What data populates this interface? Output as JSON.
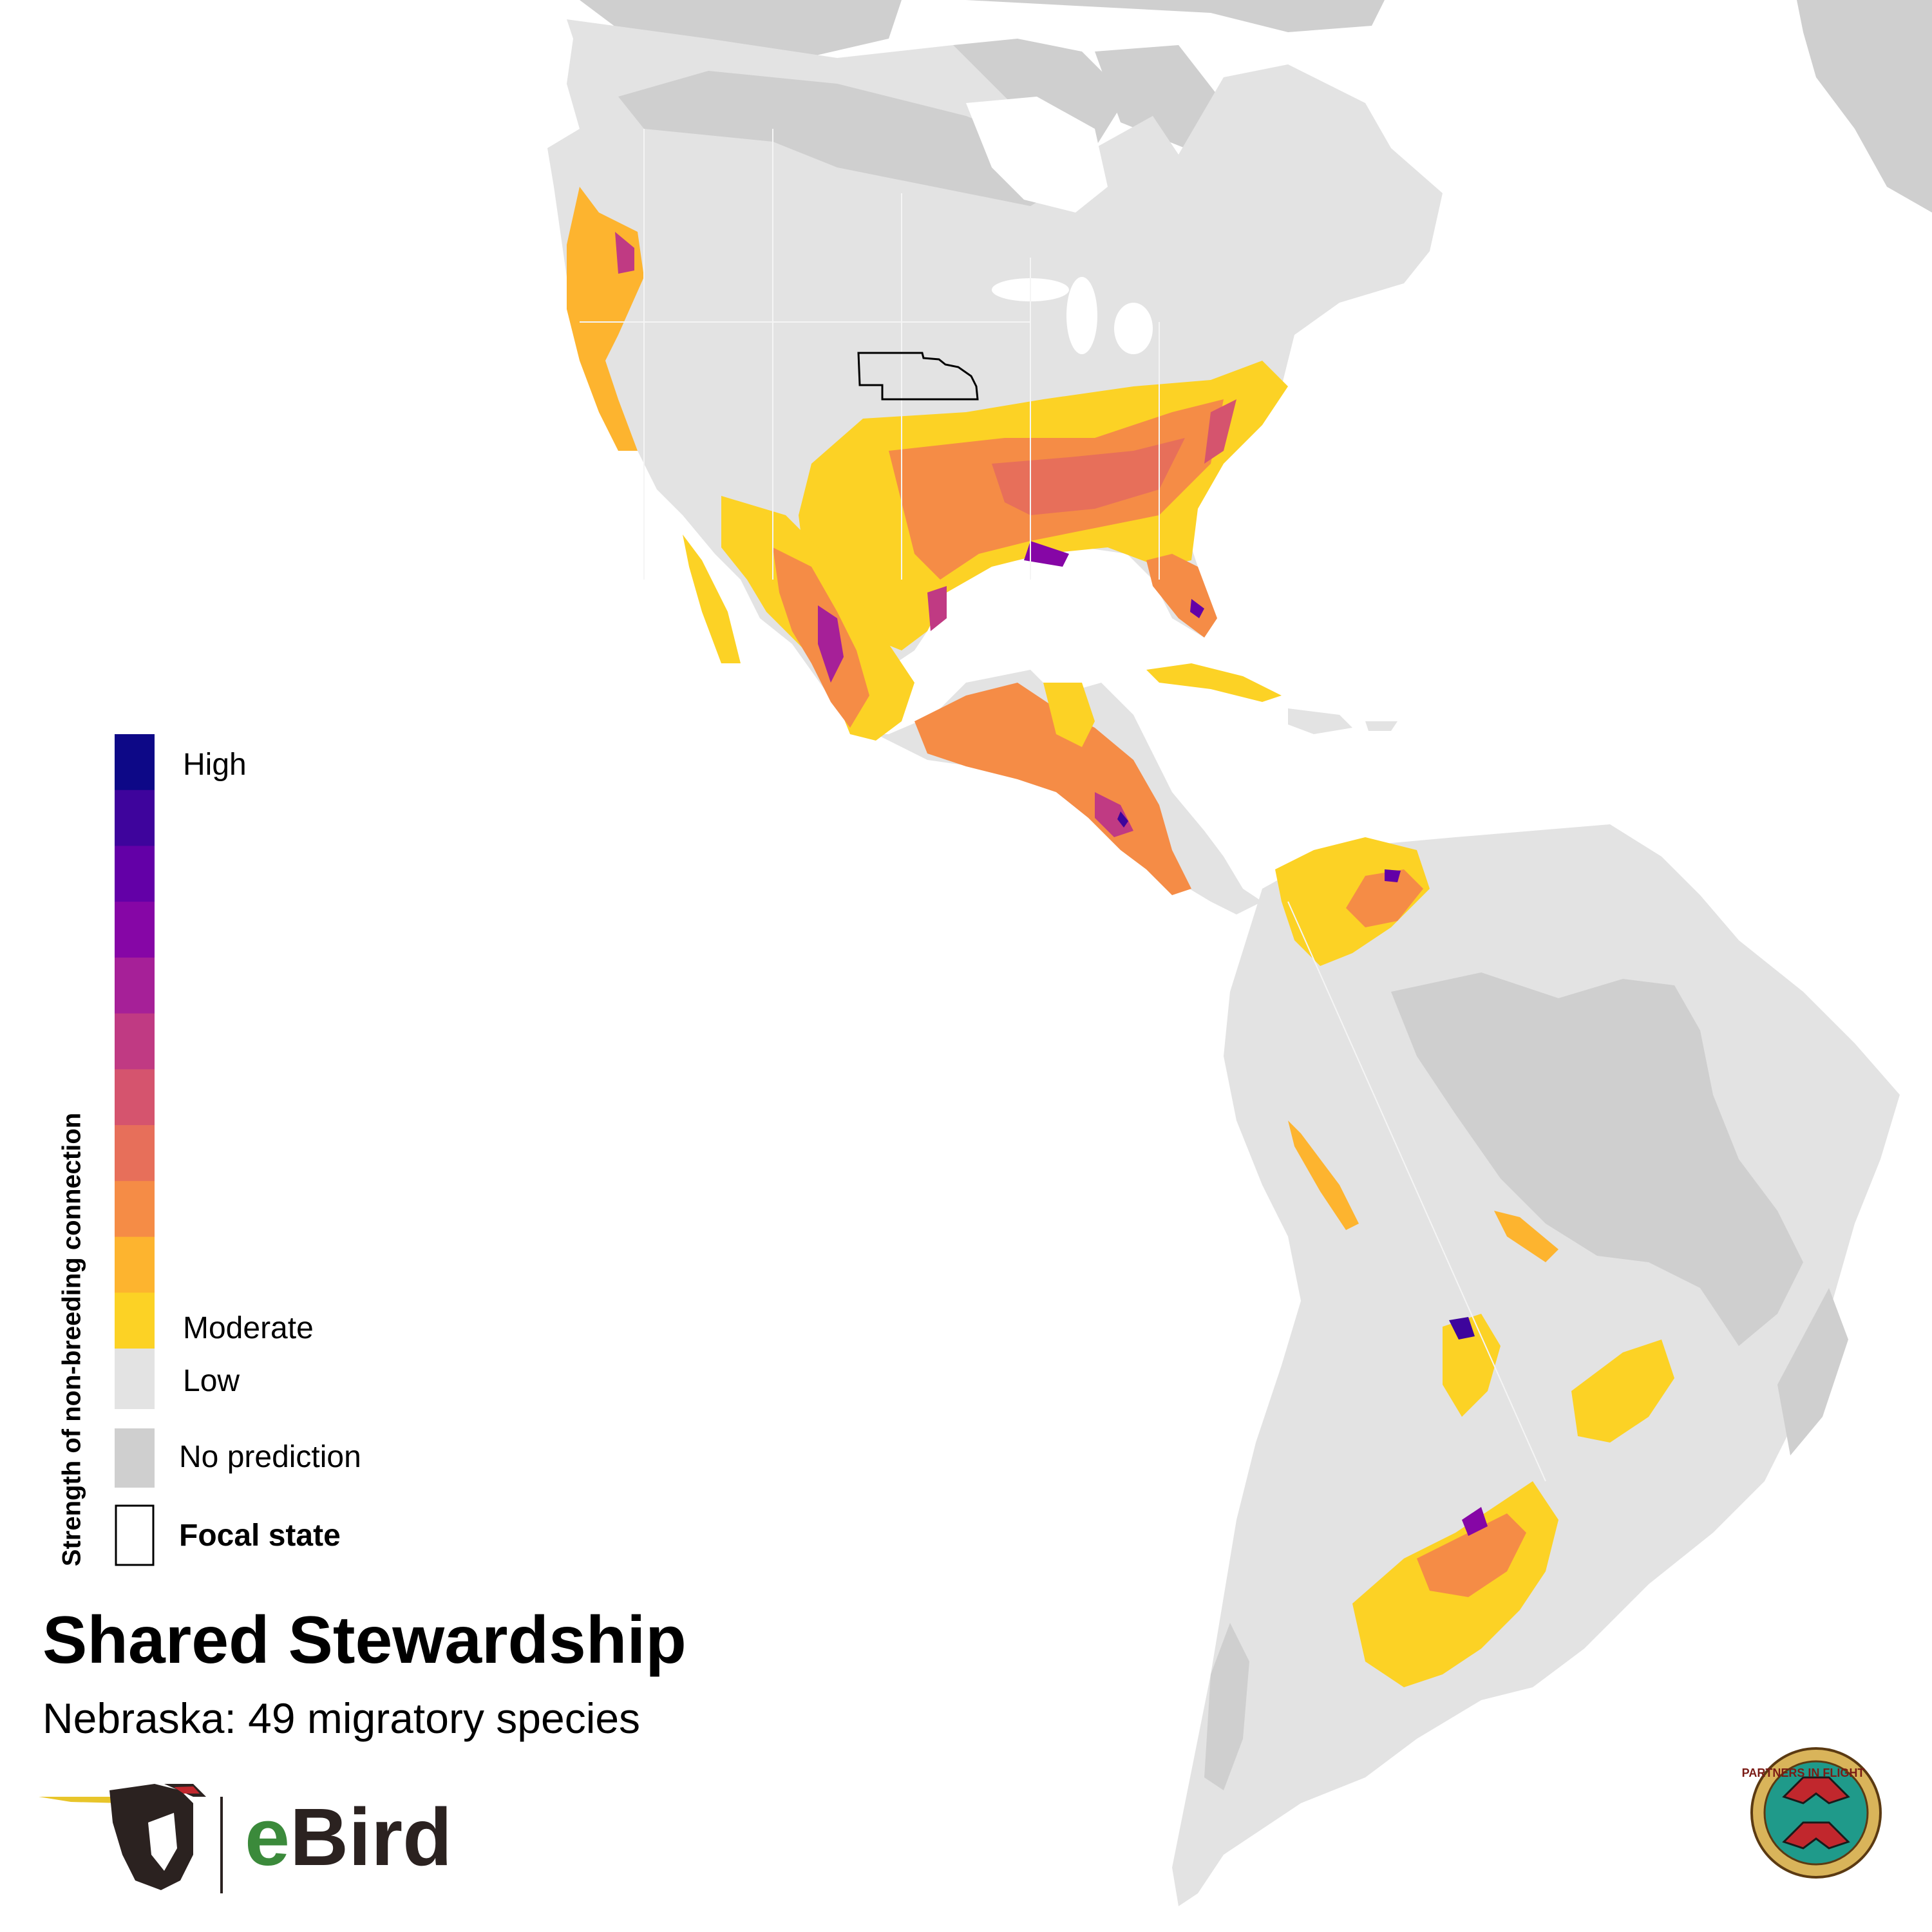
{
  "map": {
    "focal_state": "Nebraska",
    "colors": {
      "ocean": "#ffffff",
      "land_low": "#e3e3e3",
      "no_prediction": "#cfcfcf",
      "focal_outline": "#000000",
      "ramp": [
        "#0d0887",
        "#3e049c",
        "#6300a7",
        "#8606a6",
        "#a62098",
        "#c03a83",
        "#d5546e",
        "#e76f5a",
        "#f58c46",
        "#fdb42f",
        "#fcd225"
      ]
    }
  },
  "legend": {
    "axis_title": "Strength of non-breeding connection",
    "high_label": "High",
    "moderate_label": "Moderate",
    "low_label": "Low",
    "no_prediction_label": "No prediction",
    "focal_label": "Focal state"
  },
  "title": "Shared Stewardship",
  "subtitle": "Nebraska: 49 migratory species",
  "logos": {
    "ebird": {
      "wordmark_e": "e",
      "wordmark_rest": "Bird",
      "icon": "ebird-bird-head-icon"
    },
    "pif": {
      "ring_text": "PARTNERS IN FLIGHT",
      "icon": "partners-in-flight-seal-icon"
    }
  }
}
